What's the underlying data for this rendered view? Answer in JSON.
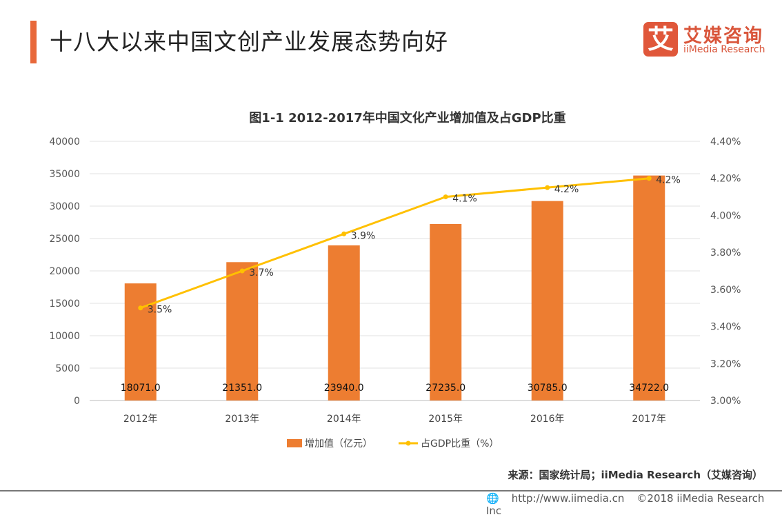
{
  "header": {
    "title": "十八大以来中国文创产业发展态势向好"
  },
  "logo": {
    "glyph": "艾",
    "cn": "艾媒咨询",
    "en": "iiMedia Research"
  },
  "chart_data": {
    "type": "bar+line",
    "title": "图1-1 2012-2017年中国文化产业增加值及占GDP比重",
    "categories": [
      "2012年",
      "2013年",
      "2014年",
      "2015年",
      "2016年",
      "2017年"
    ],
    "series": [
      {
        "name": "增加值（亿元）",
        "type": "bar",
        "axis": "left",
        "color": "#ed7d31",
        "values": [
          18071.0,
          21351.0,
          23940.0,
          27235.0,
          30785.0,
          34722.0
        ],
        "labels": [
          "18071.0",
          "21351.0",
          "23940.0",
          "27235.0",
          "30785.0",
          "34722.0"
        ]
      },
      {
        "name": "占GDP比重（%）",
        "type": "line",
        "axis": "right",
        "color": "#ffc000",
        "values": [
          3.5,
          3.7,
          3.9,
          4.1,
          4.15,
          4.2
        ],
        "labels": [
          "3.5%",
          "3.7%",
          "3.9%",
          "4.1%",
          "4.2%",
          "4.2%"
        ]
      }
    ],
    "left_axis": {
      "ylim": [
        0,
        40000
      ],
      "ticks": [
        "0",
        "5000",
        "10000",
        "15000",
        "20000",
        "25000",
        "30000",
        "35000",
        "40000"
      ]
    },
    "right_axis": {
      "ylim": [
        3.0,
        4.4
      ],
      "ticks": [
        "3.00%",
        "3.20%",
        "3.40%",
        "3.60%",
        "3.80%",
        "4.00%",
        "4.20%",
        "4.40%"
      ]
    },
    "grid": true,
    "legend": "bottom"
  },
  "footer": {
    "source": "来源：国家统计局；iiMedia Research（艾媒咨询）",
    "url": "http://www.iimedia.cn",
    "copyright": "©2018  iiMedia Research  Inc"
  }
}
